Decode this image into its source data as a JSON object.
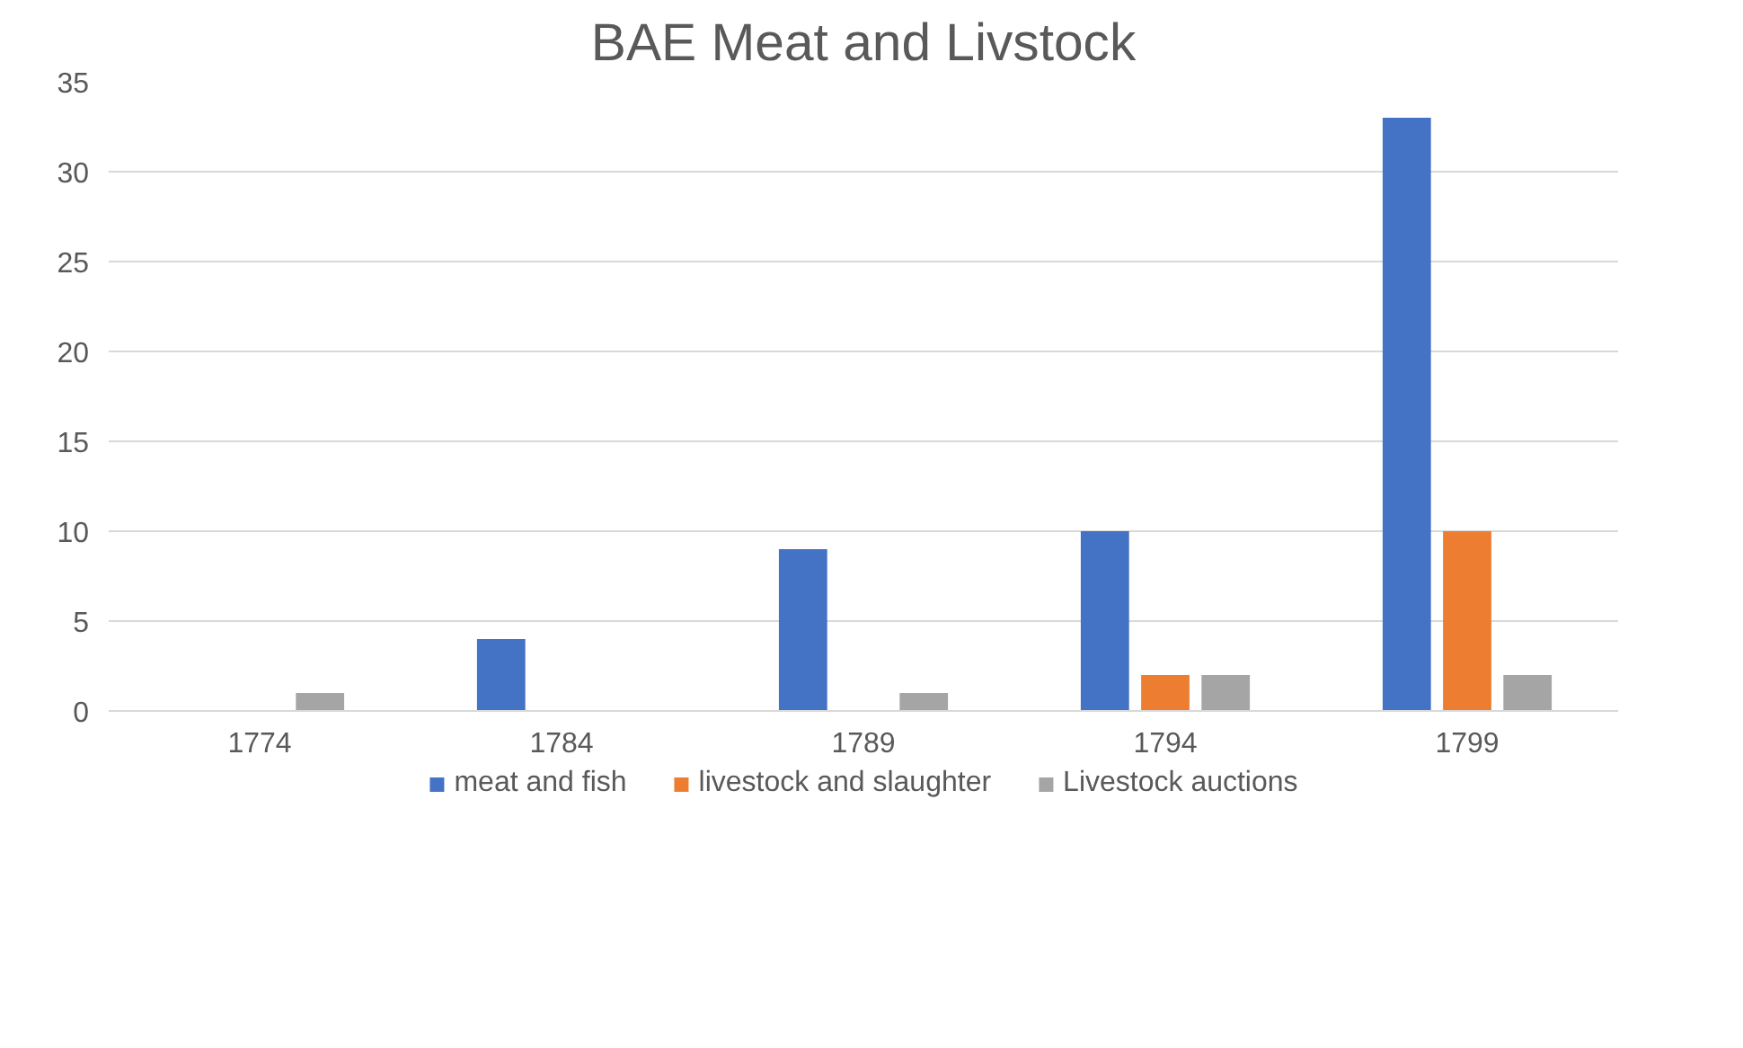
{
  "chart_data": {
    "type": "bar",
    "title": "BAE Meat and Livstock",
    "categories": [
      "1774",
      "1784",
      "1789",
      "1794",
      "1799"
    ],
    "series": [
      {
        "name": "meat and fish",
        "color": "#4472c4",
        "values": [
          0,
          4,
          9,
          10,
          33
        ]
      },
      {
        "name": "livestock and slaughter",
        "color": "#ed7d31",
        "values": [
          0,
          0,
          0,
          2,
          10
        ]
      },
      {
        "name": "Livestock auctions",
        "color": "#a5a5a5",
        "values": [
          1,
          0,
          1,
          2,
          2
        ]
      }
    ],
    "ylim": [
      0,
      35
    ],
    "yticks": [
      0,
      5,
      10,
      15,
      20,
      25,
      30,
      35
    ],
    "grid": "y",
    "legend": "bottom"
  }
}
